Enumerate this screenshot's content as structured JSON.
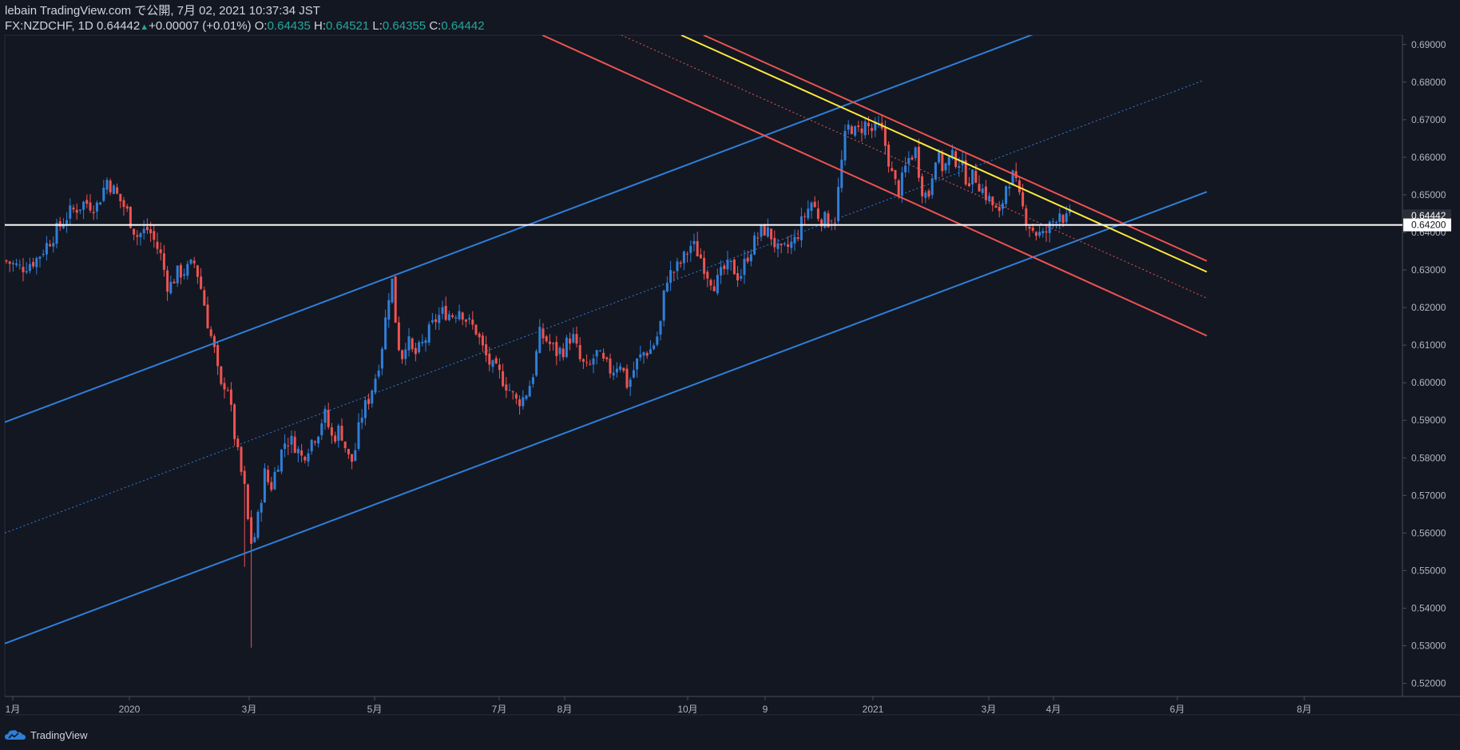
{
  "header": {
    "line1": "lebain TradingView.com で公開, 7月 02, 2021 10:37:34 JST",
    "symbol": "FX:NZDCHF, 1D",
    "last": "0.64442",
    "change": "+0.00007 (+0.01%)",
    "o_label": "O:",
    "o": "0.64435",
    "h_label": "H:",
    "h": "0.64521",
    "l_label": "L:",
    "l": "0.64355",
    "c_label": "C:",
    "c": "0.64442"
  },
  "footer": {
    "brand": "TradingView"
  },
  "colors": {
    "bg": "#131722",
    "up": "#2f7fd8",
    "down": "#ef5350",
    "channel": "#2f7fd8",
    "downtrend": "#ef5350",
    "trend": "#ffeb3b",
    "hline": "#ffffff",
    "grid": "#2a2e39"
  },
  "icons": {
    "brand_logo": "tradingview-cloud-icon"
  },
  "chart_data": {
    "type": "candlestick",
    "y_ticks": [
      "0.52000",
      "0.53000",
      "0.54000",
      "0.55000",
      "0.56000",
      "0.57000",
      "0.58000",
      "0.59000",
      "0.60000",
      "0.61000",
      "0.62000",
      "0.63000",
      "0.64000",
      "0.65000",
      "0.66000",
      "0.67000",
      "0.68000",
      "0.69000"
    ],
    "ylim": [
      0.5165,
      0.6925
    ],
    "x_ticks": [
      "1月",
      "2020",
      "3月",
      "5月",
      "7月",
      "8月",
      "10月",
      "9",
      "2021",
      "3月",
      "4月",
      "6月",
      "8月"
    ],
    "last_price_label": "0.64442",
    "hline_label": "0.64200",
    "hline_value": 0.642,
    "last_value": 0.64442,
    "close_path": [
      [
        0,
        0.6325
      ],
      [
        20,
        0.6305
      ],
      [
        40,
        0.633
      ],
      [
        60,
        0.639
      ],
      [
        80,
        0.645
      ],
      [
        100,
        0.648
      ],
      [
        115,
        0.647
      ],
      [
        128,
        0.654
      ],
      [
        140,
        0.65
      ],
      [
        152,
        0.646
      ],
      [
        165,
        0.639
      ],
      [
        180,
        0.641
      ],
      [
        195,
        0.634
      ],
      [
        205,
        0.625
      ],
      [
        215,
        0.629
      ],
      [
        228,
        0.63
      ],
      [
        238,
        0.632
      ],
      [
        248,
        0.623
      ],
      [
        255,
        0.615
      ],
      [
        262,
        0.609
      ],
      [
        270,
        0.598
      ],
      [
        278,
        0.601
      ],
      [
        286,
        0.588
      ],
      [
        294,
        0.578
      ],
      [
        300,
        0.572
      ],
      [
        305,
        0.562
      ],
      [
        310,
        0.556
      ],
      [
        318,
        0.565
      ],
      [
        325,
        0.576
      ],
      [
        333,
        0.572
      ],
      [
        342,
        0.579
      ],
      [
        352,
        0.585
      ],
      [
        362,
        0.584
      ],
      [
        372,
        0.58
      ],
      [
        382,
        0.584
      ],
      [
        392,
        0.587
      ],
      [
        400,
        0.592
      ],
      [
        410,
        0.585
      ],
      [
        420,
        0.588
      ],
      [
        430,
        0.58
      ],
      [
        436,
        0.579
      ],
      [
        446,
        0.591
      ],
      [
        456,
        0.596
      ],
      [
        466,
        0.603
      ],
      [
        474,
        0.612
      ],
      [
        480,
        0.623
      ],
      [
        485,
        0.627
      ],
      [
        490,
        0.615
      ],
      [
        496,
        0.606
      ],
      [
        503,
        0.612
      ],
      [
        512,
        0.607
      ],
      [
        520,
        0.609
      ],
      [
        530,
        0.613
      ],
      [
        540,
        0.617
      ],
      [
        550,
        0.619
      ],
      [
        560,
        0.618
      ],
      [
        570,
        0.62
      ],
      [
        580,
        0.616
      ],
      [
        590,
        0.614
      ],
      [
        600,
        0.608
      ],
      [
        610,
        0.604
      ],
      [
        620,
        0.602
      ],
      [
        630,
        0.599
      ],
      [
        640,
        0.595
      ],
      [
        650,
        0.596
      ],
      [
        660,
        0.601
      ],
      [
        670,
        0.613
      ],
      [
        680,
        0.611
      ],
      [
        690,
        0.608
      ],
      [
        700,
        0.609
      ],
      [
        710,
        0.613
      ],
      [
        720,
        0.606
      ],
      [
        730,
        0.603
      ],
      [
        740,
        0.608
      ],
      [
        750,
        0.605
      ],
      [
        760,
        0.603
      ],
      [
        770,
        0.606
      ],
      [
        780,
        0.599
      ],
      [
        790,
        0.605
      ],
      [
        800,
        0.608
      ],
      [
        810,
        0.609
      ],
      [
        820,
        0.614
      ],
      [
        828,
        0.628
      ],
      [
        840,
        0.63
      ],
      [
        850,
        0.633
      ],
      [
        860,
        0.637
      ],
      [
        870,
        0.634
      ],
      [
        880,
        0.629
      ],
      [
        890,
        0.626
      ],
      [
        900,
        0.63
      ],
      [
        910,
        0.631
      ],
      [
        920,
        0.628
      ],
      [
        930,
        0.634
      ],
      [
        940,
        0.638
      ],
      [
        950,
        0.641
      ],
      [
        960,
        0.639
      ],
      [
        970,
        0.634
      ],
      [
        980,
        0.636
      ],
      [
        990,
        0.638
      ],
      [
        1000,
        0.644
      ],
      [
        1010,
        0.648
      ],
      [
        1020,
        0.644
      ],
      [
        1030,
        0.643
      ],
      [
        1040,
        0.644
      ],
      [
        1046,
        0.656
      ],
      [
        1052,
        0.665
      ],
      [
        1058,
        0.669
      ],
      [
        1066,
        0.666
      ],
      [
        1076,
        0.669
      ],
      [
        1086,
        0.667
      ],
      [
        1096,
        0.668
      ],
      [
        1104,
        0.662
      ],
      [
        1112,
        0.654
      ],
      [
        1120,
        0.651
      ],
      [
        1130,
        0.659
      ],
      [
        1140,
        0.662
      ],
      [
        1148,
        0.652
      ],
      [
        1156,
        0.649
      ],
      [
        1165,
        0.661
      ],
      [
        1175,
        0.657
      ],
      [
        1185,
        0.66
      ],
      [
        1195,
        0.659
      ],
      [
        1205,
        0.654
      ],
      [
        1215,
        0.655
      ],
      [
        1225,
        0.651
      ],
      [
        1235,
        0.648
      ],
      [
        1245,
        0.644
      ],
      [
        1255,
        0.654
      ],
      [
        1263,
        0.655
      ],
      [
        1270,
        0.649
      ],
      [
        1280,
        0.643
      ],
      [
        1290,
        0.64
      ],
      [
        1300,
        0.639
      ],
      [
        1310,
        0.642
      ],
      [
        1320,
        0.646
      ],
      [
        1328,
        0.643
      ],
      [
        1335,
        0.6444
      ]
    ],
    "lines": [
      {
        "name": "channel-upper",
        "color": "#2f7fd8",
        "width": 2,
        "pts": [
          [
            0,
            0.5895
          ],
          [
            1310,
            0.6945
          ]
        ]
      },
      {
        "name": "channel-lower",
        "color": "#2f7fd8",
        "width": 2,
        "pts": [
          [
            0,
            0.5306
          ],
          [
            1505,
            0.6508
          ]
        ]
      },
      {
        "name": "channel-mid",
        "color": "#2f7fd8",
        "width": 1,
        "dash": "2,3",
        "pts": [
          [
            0,
            0.56
          ],
          [
            1500,
            0.6804
          ]
        ]
      },
      {
        "name": "downtrend-upper",
        "color": "#ef5350",
        "width": 2,
        "pts": [
          [
            875,
            0.6925
          ],
          [
            1505,
            0.6324
          ]
        ]
      },
      {
        "name": "downtrend-lower",
        "color": "#ef5350",
        "width": 2,
        "pts": [
          [
            673,
            0.6925
          ],
          [
            1505,
            0.6125
          ]
        ]
      },
      {
        "name": "downtrend-mid",
        "color": "#ef5350",
        "width": 1,
        "dash": "2,3",
        "pts": [
          [
            772,
            0.6925
          ],
          [
            1505,
            0.6225
          ]
        ]
      },
      {
        "name": "trendline",
        "color": "#ffeb3b",
        "width": 2,
        "pts": [
          [
            847,
            0.6925
          ],
          [
            1505,
            0.6295
          ]
        ]
      }
    ]
  }
}
